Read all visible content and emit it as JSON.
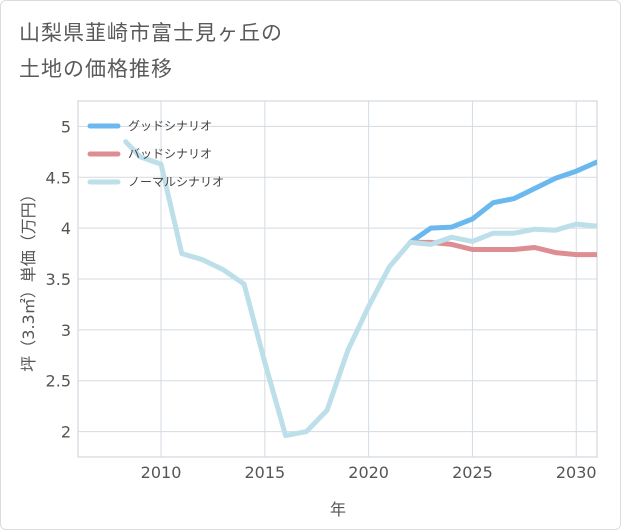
{
  "chart_data": {
    "type": "line",
    "title": "山梨県韮崎市富士見ヶ丘の\n土地の価格推移",
    "xlabel": "年",
    "ylabel": "坪（3.3㎡）単価（万円）",
    "xlim": [
      2006,
      2031
    ],
    "ylim": [
      1.75,
      5.25
    ],
    "xticks": [
      "2010",
      "2015",
      "2020",
      "2025",
      "2030"
    ],
    "yticks": [
      "2",
      "2.5",
      "3",
      "3.5",
      "4",
      "4.5",
      "5"
    ],
    "grid": true,
    "legend_position": "top-left",
    "series": [
      {
        "name": "グッドシナリオ",
        "color": "#6bb8ee",
        "x": [
          2022,
          2023,
          2024,
          2025,
          2026,
          2027,
          2028,
          2029,
          2030,
          2031
        ],
        "y": [
          3.86,
          4.0,
          4.01,
          4.09,
          4.25,
          4.29,
          4.39,
          4.49,
          4.56,
          4.65
        ]
      },
      {
        "name": "バッドシナリオ",
        "color": "#de8e92",
        "x": [
          2022,
          2023,
          2024,
          2025,
          2026,
          2027,
          2028,
          2029,
          2030,
          2031
        ],
        "y": [
          3.86,
          3.86,
          3.84,
          3.79,
          3.79,
          3.79,
          3.81,
          3.76,
          3.74,
          3.74
        ]
      },
      {
        "name": "ノーマルシナリオ",
        "color": "#bcdfea",
        "x": [
          2008.3,
          2009,
          2010,
          2011,
          2012,
          2013,
          2014,
          2015,
          2016,
          2017,
          2018,
          2019,
          2020,
          2021,
          2022,
          2023,
          2024,
          2025,
          2026,
          2027,
          2028,
          2029,
          2030,
          2031
        ],
        "y": [
          4.85,
          4.7,
          4.63,
          3.75,
          3.69,
          3.59,
          3.45,
          2.68,
          1.96,
          2.0,
          2.21,
          2.8,
          3.23,
          3.62,
          3.86,
          3.84,
          3.91,
          3.87,
          3.95,
          3.95,
          3.99,
          3.98,
          4.04,
          4.02
        ]
      }
    ]
  }
}
